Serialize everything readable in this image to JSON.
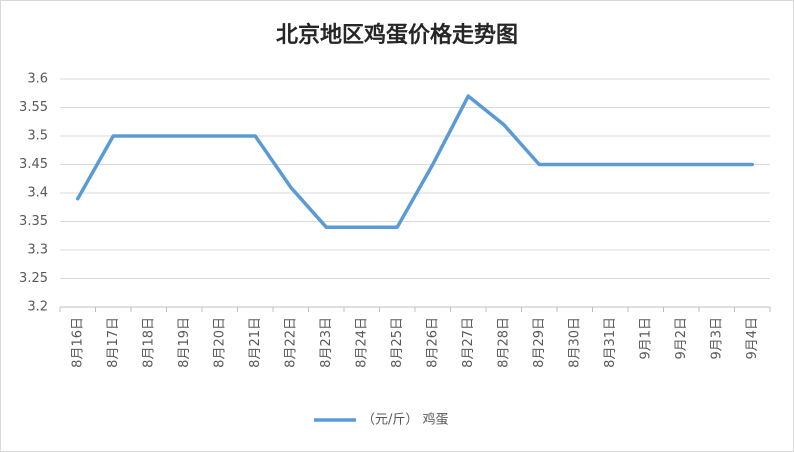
{
  "chart_data": {
    "type": "line",
    "title": "北京地区鸡蛋价格走势图",
    "categories": [
      "8月16日",
      "8月17日",
      "8月18日",
      "8月19日",
      "8月20日",
      "8月21日",
      "8月22日",
      "8月23日",
      "8月24日",
      "8月25日",
      "8月26日",
      "8月27日",
      "8月28日",
      "8月29日",
      "8月30日",
      "8月31日",
      "9月1日",
      "9月2日",
      "9月3日",
      "9月4日"
    ],
    "series": [
      {
        "name": "（元/斤） 鸡蛋",
        "color": "#5b9bd5",
        "values": [
          3.39,
          3.5,
          3.5,
          3.5,
          3.5,
          3.5,
          3.41,
          3.34,
          3.34,
          3.34,
          3.45,
          3.57,
          3.52,
          3.45,
          3.45,
          3.45,
          3.45,
          3.45,
          3.45,
          3.45
        ]
      }
    ],
    "ylim": [
      3.2,
      3.6
    ],
    "yticks": [
      3.2,
      3.25,
      3.3,
      3.35,
      3.4,
      3.45,
      3.5,
      3.55,
      3.6
    ],
    "grid": true,
    "legend": "bottom"
  }
}
